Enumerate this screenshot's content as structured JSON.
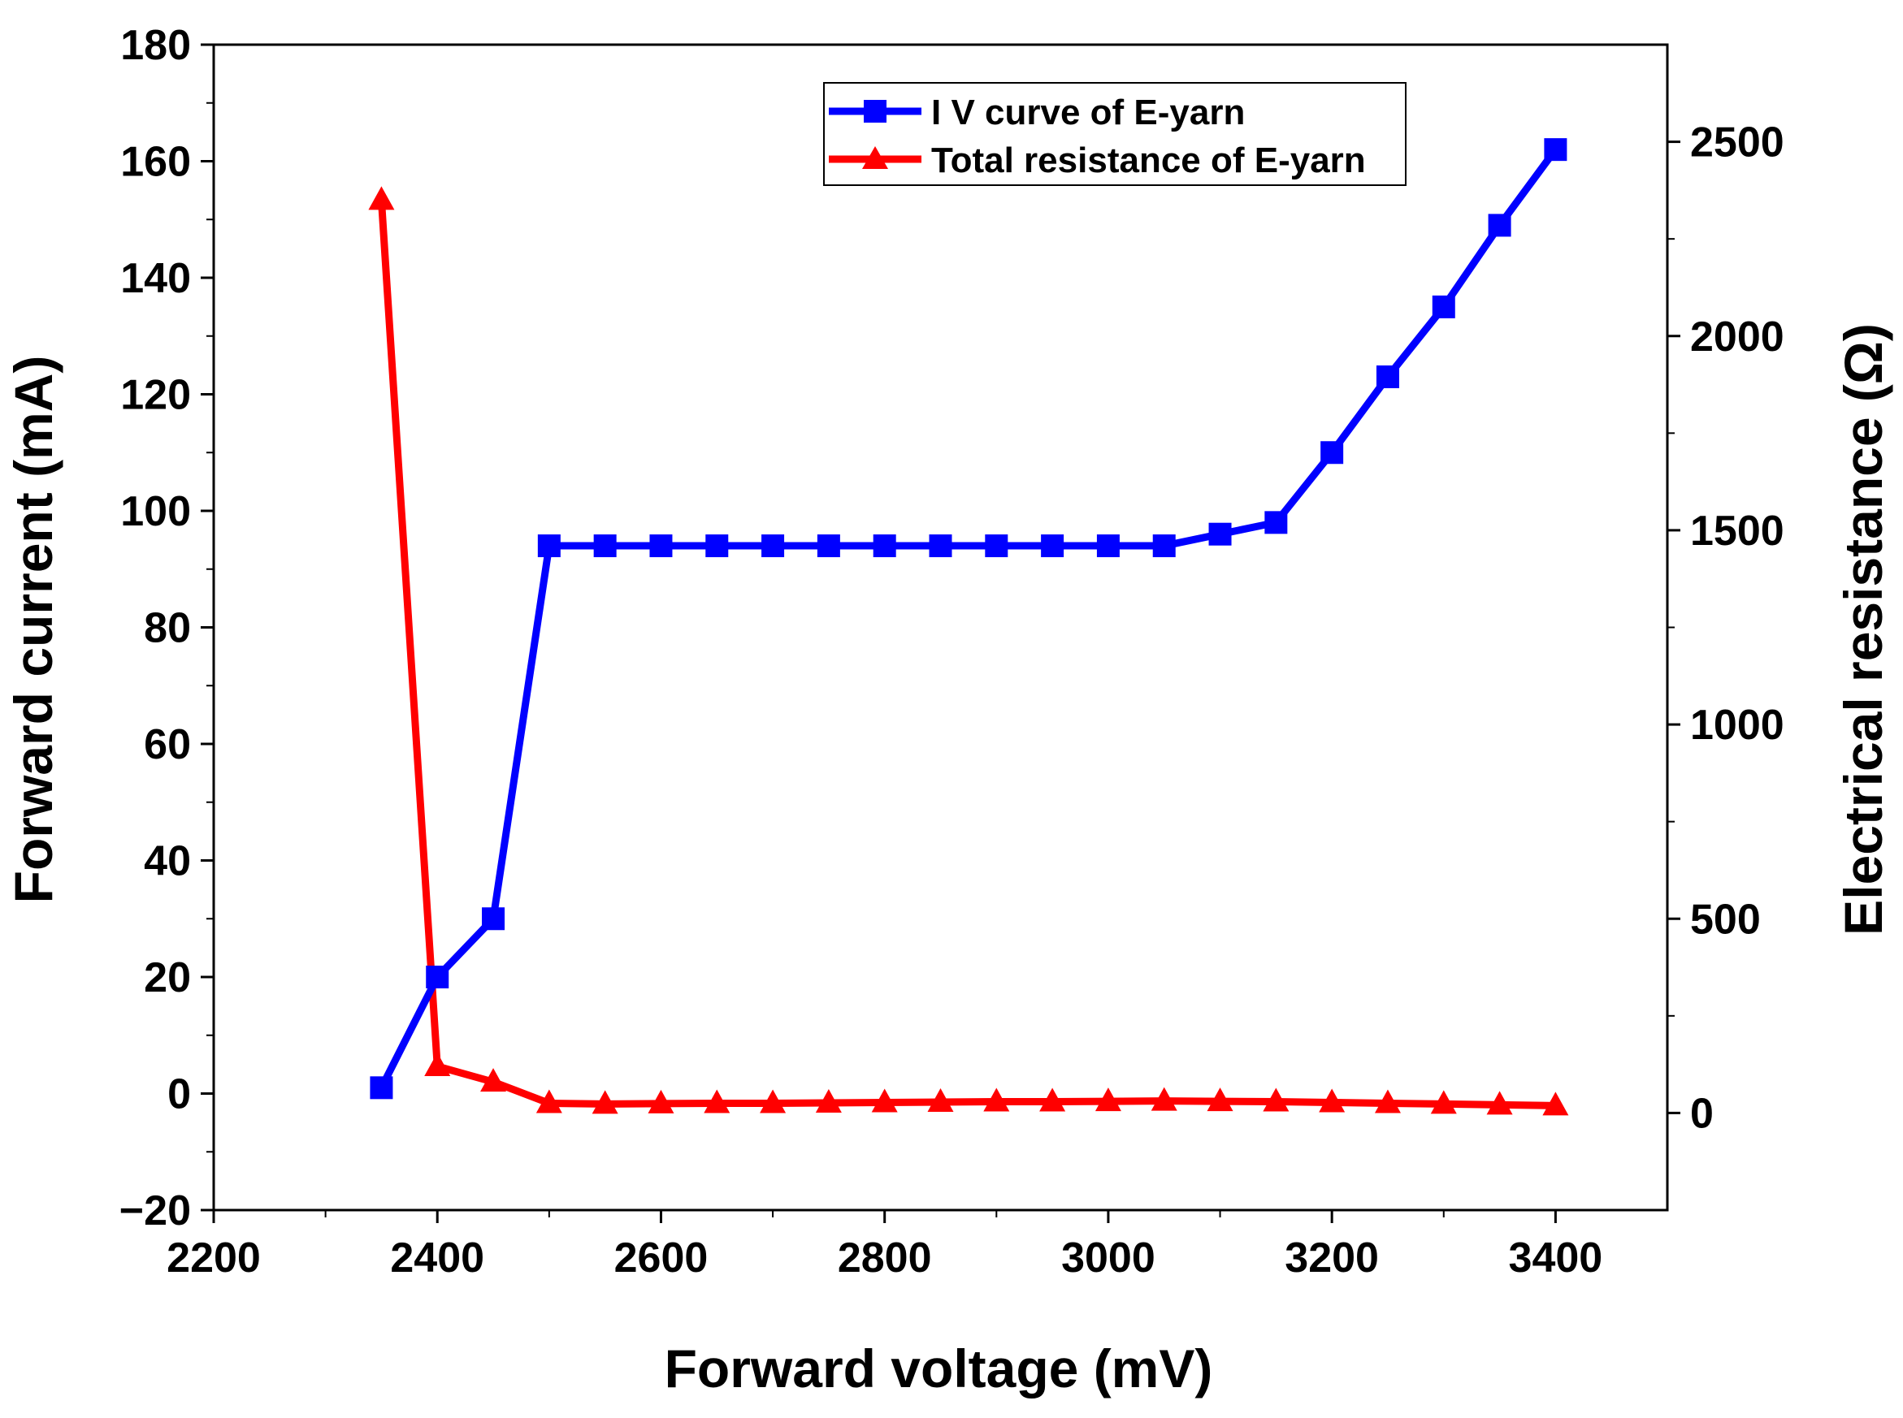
{
  "chart_data": {
    "type": "line",
    "title": "",
    "xlabel": "Forward voltage (mV)",
    "ylabel": "Forward current (mA)",
    "y2label": "Electrical resistance (Ω)",
    "xlim": [
      2200,
      3500
    ],
    "ylim": [
      -20,
      180
    ],
    "y2lim": [
      -250,
      2750
    ],
    "xticks": [
      2200,
      2400,
      2600,
      2800,
      3000,
      3200,
      3400
    ],
    "yticks": [
      -20,
      0,
      20,
      40,
      60,
      80,
      100,
      120,
      140,
      160,
      180
    ],
    "y2ticks": [
      0,
      500,
      1000,
      1500,
      2000,
      2500
    ],
    "xtick_labels": [
      "2200",
      "2400",
      "2600",
      "2800",
      "3000",
      "3200",
      "3400"
    ],
    "ytick_labels": [
      "−20",
      "0",
      "20",
      "40",
      "60",
      "80",
      "100",
      "120",
      "140",
      "160",
      "180"
    ],
    "y2tick_labels": [
      "0",
      "500",
      "1000",
      "1500",
      "2000",
      "2500"
    ],
    "legend_position": "top-right",
    "x": [
      2350,
      2400,
      2450,
      2500,
      2550,
      2600,
      2650,
      2700,
      2750,
      2800,
      2850,
      2900,
      2950,
      3000,
      3050,
      3100,
      3150,
      3200,
      3250,
      3300,
      3350,
      3400
    ],
    "series": [
      {
        "name": "I V curve of E-yarn",
        "axis": "left",
        "color": "#0000ff",
        "marker": "square",
        "values": [
          1,
          20,
          30,
          94,
          94,
          94,
          94,
          94,
          94,
          94,
          94,
          94,
          94,
          94,
          94,
          96,
          98,
          110,
          123,
          135,
          149,
          162
        ]
      },
      {
        "name": "Total resistance of E-yarn",
        "axis": "right",
        "color": "#ff0000",
        "marker": "triangle",
        "values": [
          2350,
          120,
          80,
          25,
          23,
          24,
          25,
          25,
          26,
          27,
          28,
          29,
          29,
          30,
          31,
          30,
          29,
          27,
          25,
          23,
          21,
          19
        ]
      }
    ]
  }
}
